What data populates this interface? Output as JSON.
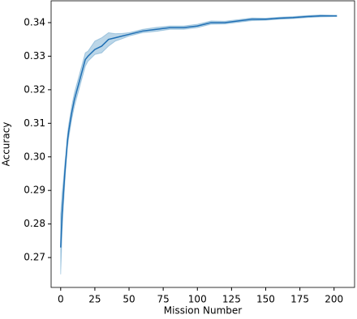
{
  "chart_data": {
    "type": "line",
    "x_label": "Mission Number",
    "y_label": "Accuracy",
    "x": [
      0,
      1,
      2,
      3,
      4,
      5,
      6,
      8,
      10,
      12,
      14,
      16,
      18,
      20,
      25,
      30,
      35,
      40,
      45,
      50,
      60,
      70,
      80,
      90,
      100,
      110,
      120,
      130,
      140,
      150,
      160,
      170,
      180,
      190,
      200,
      202
    ],
    "values": [
      0.273,
      0.283,
      0.289,
      0.295,
      0.3,
      0.305,
      0.308,
      0.313,
      0.317,
      0.32,
      0.323,
      0.326,
      0.329,
      0.33,
      0.332,
      0.333,
      0.335,
      0.3355,
      0.336,
      0.3365,
      0.3375,
      0.338,
      0.3385,
      0.3385,
      0.339,
      0.34,
      0.34,
      0.3405,
      0.341,
      0.341,
      0.3413,
      0.3415,
      0.3418,
      0.342,
      0.342,
      0.342
    ],
    "lower": [
      0.265,
      0.277,
      0.285,
      0.292,
      0.298,
      0.303,
      0.306,
      0.311,
      0.315,
      0.318,
      0.321,
      0.324,
      0.327,
      0.3285,
      0.3305,
      0.331,
      0.333,
      0.3345,
      0.3352,
      0.336,
      0.337,
      0.3374,
      0.338,
      0.338,
      0.3385,
      0.3395,
      0.3396,
      0.3401,
      0.3406,
      0.3407,
      0.341,
      0.3412,
      0.3415,
      0.3417,
      0.3418,
      0.3418
    ],
    "upper": [
      0.283,
      0.289,
      0.293,
      0.298,
      0.302,
      0.307,
      0.31,
      0.315,
      0.319,
      0.322,
      0.325,
      0.328,
      0.331,
      0.3315,
      0.3345,
      0.3355,
      0.337,
      0.3367,
      0.3368,
      0.337,
      0.338,
      0.3386,
      0.339,
      0.339,
      0.3395,
      0.3405,
      0.3404,
      0.3409,
      0.3414,
      0.3413,
      0.3416,
      0.3418,
      0.3421,
      0.3423,
      0.3422,
      0.3422
    ],
    "color": "#1f6fb4",
    "band_color": "#1f77b4",
    "xlim": [
      -7,
      215
    ],
    "xticks": [
      0,
      25,
      50,
      75,
      100,
      125,
      150,
      175,
      200
    ],
    "ylim": [
      0.2611,
      0.3465
    ],
    "yticks": [
      0.27,
      0.28,
      0.29,
      {
        "value": 0.3,
        "label": "0.30"
      },
      0.31,
      0.32,
      0.33,
      0.34
    ]
  }
}
